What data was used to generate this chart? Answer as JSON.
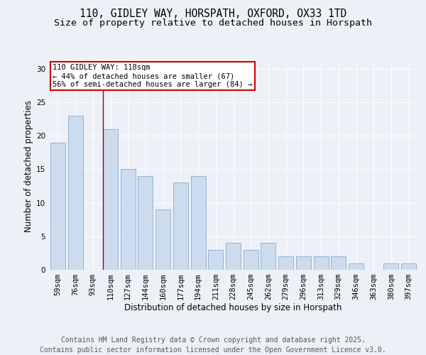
{
  "title1": "110, GIDLEY WAY, HORSPATH, OXFORD, OX33 1TD",
  "title2": "Size of property relative to detached houses in Horspath",
  "xlabel": "Distribution of detached houses by size in Horspath",
  "ylabel": "Number of detached properties",
  "categories": [
    "59sqm",
    "76sqm",
    "93sqm",
    "110sqm",
    "127sqm",
    "144sqm",
    "160sqm",
    "177sqm",
    "194sqm",
    "211sqm",
    "228sqm",
    "245sqm",
    "262sqm",
    "279sqm",
    "296sqm",
    "313sqm",
    "329sqm",
    "346sqm",
    "363sqm",
    "380sqm",
    "397sqm"
  ],
  "values": [
    19,
    23,
    0,
    21,
    15,
    14,
    9,
    13,
    14,
    3,
    4,
    3,
    4,
    2,
    2,
    2,
    2,
    1,
    0,
    1,
    1
  ],
  "bar_color": "#ccdcee",
  "bar_edge_color": "#88aacc",
  "highlight_index": 3,
  "highlight_line_color": "#990000",
  "annotation_text": "110 GIDLEY WAY: 118sqm\n← 44% of detached houses are smaller (67)\n56% of semi-detached houses are larger (84) →",
  "annotation_box_facecolor": "#ffffff",
  "annotation_box_edgecolor": "#cc0000",
  "ylim": [
    0,
    31
  ],
  "yticks": [
    0,
    5,
    10,
    15,
    20,
    25,
    30
  ],
  "footer": "Contains HM Land Registry data © Crown copyright and database right 2025.\nContains public sector information licensed under the Open Government Licence v3.0.",
  "background_color": "#edf1f7",
  "grid_color": "#ffffff",
  "title_fontsize": 10.5,
  "subtitle_fontsize": 9.5,
  "axis_label_fontsize": 8.5,
  "tick_fontsize": 7.5,
  "annotation_fontsize": 7.5,
  "footer_fontsize": 7
}
